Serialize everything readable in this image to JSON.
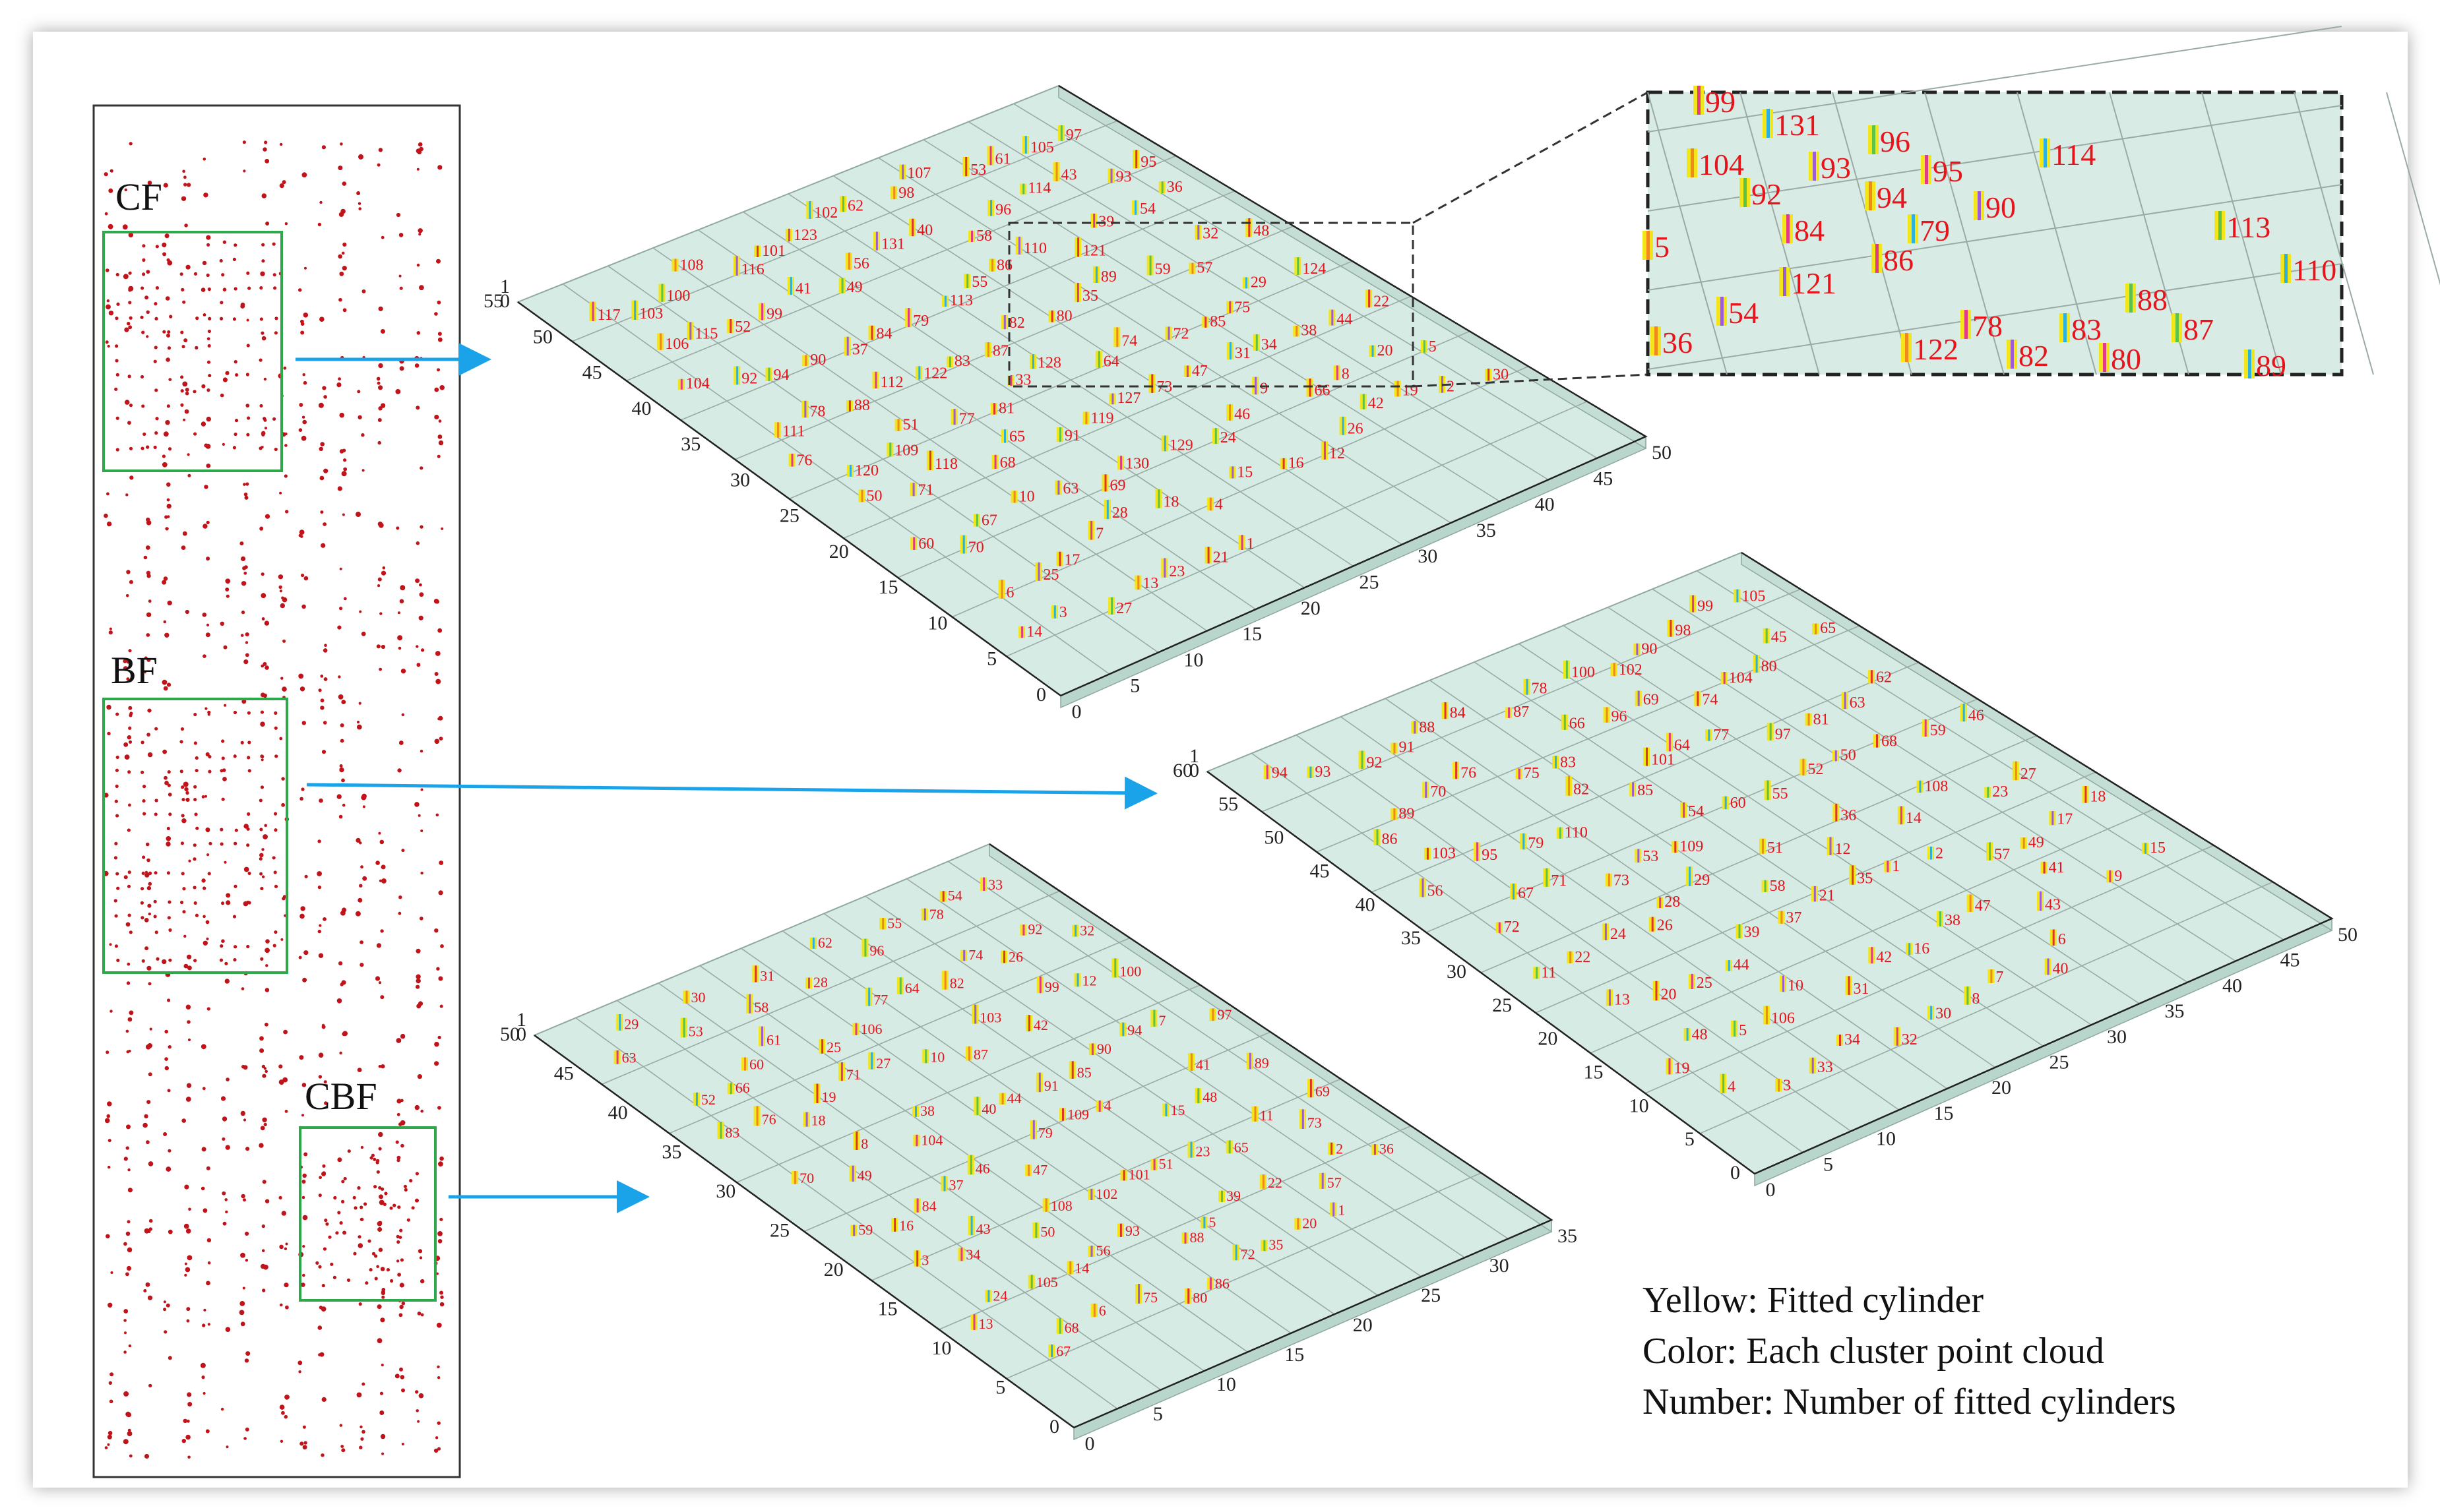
{
  "overview": {
    "labels": [
      "CF",
      "BF",
      "CBF"
    ]
  },
  "legend": {
    "line1": "Yellow: Fitted cylinder",
    "line2": "Color: Each cluster point cloud",
    "line3": "Number: Number of fitted cylinders"
  },
  "plots": {
    "cf": {
      "x_ticks": [
        "55",
        "50",
        "45",
        "40",
        "35",
        "30",
        "25",
        "20",
        "15",
        "10",
        "5",
        "0"
      ],
      "y_ticks": [
        "0",
        "5",
        "10",
        "15",
        "20",
        "25",
        "30",
        "35",
        "40",
        "45",
        "50"
      ],
      "z_ticks": [
        "1",
        "0"
      ],
      "labels": [
        "117",
        "103",
        "100",
        "108",
        "116",
        "101",
        "123",
        "102",
        "62",
        "98",
        "107",
        "53",
        "61",
        "105",
        "97",
        "106",
        "115",
        "52",
        "99",
        "41",
        "49",
        "56",
        "131",
        "40",
        "58",
        "96",
        "114",
        "43",
        "93",
        "95",
        "104",
        "92",
        "94",
        "90",
        "37",
        "84",
        "79",
        "113",
        "55",
        "86",
        "110",
        "121",
        "39",
        "54",
        "36",
        "111",
        "78",
        "88",
        "112",
        "122",
        "83",
        "87",
        "82",
        "80",
        "35",
        "89",
        "59",
        "57",
        "32",
        "48",
        "76",
        "120",
        "109",
        "51",
        "77",
        "81",
        "33",
        "128",
        "64",
        "74",
        "72",
        "85",
        "75",
        "29",
        "124",
        "50",
        "71",
        "118",
        "68",
        "65",
        "91",
        "119",
        "127",
        "73",
        "47",
        "31",
        "34",
        "38",
        "44",
        "22",
        "60",
        "70",
        "67",
        "10",
        "63",
        "69",
        "130",
        "129",
        "24",
        "46",
        "9",
        "66",
        "8",
        "20",
        "5",
        "6",
        "25",
        "17",
        "7",
        "28",
        "18",
        "4",
        "15",
        "16",
        "12",
        "26",
        "42",
        "19",
        "2",
        "30",
        "14",
        "3",
        "27",
        "13",
        "23",
        "21",
        "1"
      ],
      "inset_labels": [
        "99",
        "131",
        "96",
        "104",
        "93",
        "95",
        "114",
        "92",
        "94",
        "90",
        "84",
        "79",
        "113",
        "5",
        "121",
        "86",
        "110",
        "88",
        "36",
        "54",
        "78",
        "83",
        "87",
        "122",
        "82",
        "80",
        "89"
      ]
    },
    "bf": {
      "x_ticks": [
        "60",
        "55",
        "50",
        "45",
        "40",
        "35",
        "30",
        "25",
        "20",
        "15",
        "10",
        "5",
        "0"
      ],
      "y_ticks": [
        "0",
        "5",
        "10",
        "15",
        "20",
        "25",
        "30",
        "35",
        "40",
        "45",
        "50"
      ],
      "z_ticks": [
        "1",
        "0"
      ],
      "labels": [
        "94",
        "93",
        "92",
        "91",
        "88",
        "84",
        "87",
        "78",
        "100",
        "102",
        "90",
        "98",
        "99",
        "105",
        "86",
        "89",
        "70",
        "76",
        "75",
        "83",
        "66",
        "96",
        "69",
        "74",
        "104",
        "80",
        "45",
        "65",
        "56",
        "103",
        "95",
        "79",
        "110",
        "82",
        "85",
        "101",
        "64",
        "77",
        "97",
        "81",
        "63",
        "62",
        "72",
        "67",
        "71",
        "73",
        "53",
        "109",
        "54",
        "60",
        "55",
        "52",
        "50",
        "68",
        "59",
        "46",
        "11",
        "22",
        "24",
        "26",
        "28",
        "29",
        "58",
        "51",
        "12",
        "36",
        "14",
        "108",
        "23",
        "27",
        "13",
        "20",
        "25",
        "44",
        "39",
        "37",
        "21",
        "35",
        "1",
        "2",
        "57",
        "49",
        "17",
        "18",
        "19",
        "48",
        "5",
        "106",
        "10",
        "31",
        "42",
        "16",
        "38",
        "47",
        "43",
        "41",
        "9",
        "15",
        "4",
        "3",
        "33",
        "34",
        "32",
        "30",
        "8",
        "7",
        "40",
        "6"
      ]
    },
    "cbf": {
      "x_ticks": [
        "50",
        "45",
        "40",
        "35",
        "30",
        "25",
        "20",
        "15",
        "10",
        "5",
        "0"
      ],
      "y_ticks": [
        "0",
        "5",
        "10",
        "15",
        "20",
        "25",
        "30",
        "35"
      ],
      "z_ticks": [
        "1",
        "0"
      ],
      "labels": [
        "63",
        "29",
        "53",
        "30",
        "58",
        "31",
        "28",
        "62",
        "96",
        "55",
        "78",
        "54",
        "33",
        "52",
        "66",
        "60",
        "61",
        "25",
        "106",
        "77",
        "64",
        "82",
        "74",
        "26",
        "92",
        "32",
        "83",
        "76",
        "18",
        "19",
        "71",
        "27",
        "10",
        "87",
        "103",
        "42",
        "99",
        "12",
        "100",
        "70",
        "49",
        "8",
        "104",
        "38",
        "40",
        "44",
        "91",
        "85",
        "90",
        "94",
        "7",
        "97",
        "59",
        "16",
        "84",
        "37",
        "46",
        "47",
        "79",
        "109",
        "4",
        "15",
        "48",
        "41",
        "89",
        "3",
        "34",
        "43",
        "50",
        "108",
        "102",
        "101",
        "51",
        "23",
        "65",
        "11",
        "73",
        "69",
        "13",
        "24",
        "105",
        "14",
        "56",
        "93",
        "88",
        "5",
        "39",
        "22",
        "57",
        "2",
        "36",
        "67",
        "68",
        "6",
        "75",
        "80",
        "86",
        "72",
        "35",
        "20",
        "1"
      ]
    }
  }
}
